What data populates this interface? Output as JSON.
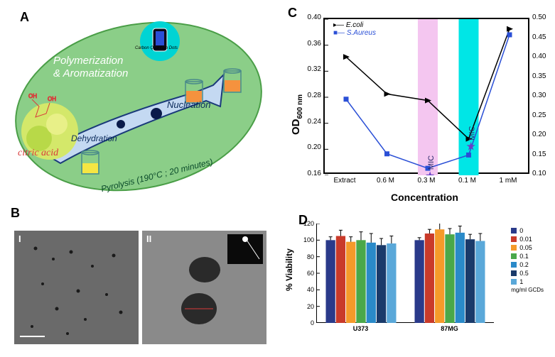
{
  "panel_labels": {
    "A": "A",
    "B": "B",
    "C": "C",
    "D": "D"
  },
  "panel_a": {
    "ellipse_fill": "#8bce88",
    "ellipse_stroke": "#4a9e47",
    "text_polymerization": "Polymerization",
    "text_aromatization": "& Aromatization",
    "text_nucleation": "Nucleation",
    "text_dehydration": "Dehydration",
    "text_pyrolysis": "Pyrolysis (190°C ; 20 minutes)",
    "text_citric": "citric acid",
    "text_cqd": "Carbon Quantum Dots",
    "arrow_fill": "#c4d9f2",
    "arrow_stroke": "#1a3a7a",
    "cqd_color": "#00d4d4",
    "dot_color": "#0a1a4a",
    "beaker_liquid1": "#f5e642",
    "beaker_liquid2": "#f5923e",
    "citric_color": "#d93b3b"
  },
  "panel_b": {
    "label_i": "I",
    "label_ii": "II",
    "bg_i": "#6a6a6a",
    "bg_ii": "#828282",
    "particle_color": "#2a2a2a",
    "inset_bg": "#0a0a0a"
  },
  "panel_c": {
    "type": "line",
    "x_categories": [
      "Extract",
      "0.6 M",
      "0.3 M",
      "0.1 M",
      "1 mM"
    ],
    "series": [
      {
        "name": "E.coli",
        "color": "#000000",
        "marker": "triangle-right",
        "y_values": [
          0.342,
          0.285,
          0.275,
          0.216,
          0.385
        ],
        "mic_index": 3
      },
      {
        "name": "S.Aureus",
        "color": "#2a4fd6",
        "marker": "square",
        "y_right_values": [
          0.295,
          0.155,
          0.118,
          0.152,
          0.46
        ],
        "mic_index": 2
      }
    ],
    "ylabel": "OD",
    "ylabel_sub": "600 nm",
    "xlabel": "Concentration",
    "ylim_left": [
      0.16,
      0.4
    ],
    "ytick_left": [
      0.16,
      0.2,
      0.24,
      0.28,
      0.32,
      0.36,
      0.4
    ],
    "ylim_right": [
      0.1,
      0.5
    ],
    "ytick_right": [
      0.1,
      0.15,
      0.2,
      0.25,
      0.3,
      0.35,
      0.4,
      0.45,
      0.5
    ],
    "mic_label": "MIC",
    "mic_star_color": "#6a3fc6",
    "highlight_bands": [
      {
        "x_index": 2,
        "color": "#f4c6f0"
      },
      {
        "x_index": 3,
        "color": "#00e6e6"
      }
    ],
    "legend_pos": "top-left",
    "font_size_axis": 10,
    "font_size_label": 14
  },
  "panel_d": {
    "type": "bar",
    "groups": [
      "U373",
      "87MG"
    ],
    "legend_title": "mg/ml GCDs",
    "categories": [
      "0",
      "0.01",
      "0.05",
      "0.1",
      "0.2",
      "0.5",
      "1"
    ],
    "colors": [
      "#2a3a8a",
      "#c93a2a",
      "#f59a2a",
      "#4aa84a",
      "#2a8ac9",
      "#1a3a6a",
      "#5aa8d9"
    ],
    "values": {
      "U373": [
        100,
        105,
        98,
        100,
        97,
        94,
        96
      ],
      "87MG": [
        100,
        108,
        113,
        107,
        109,
        101,
        99
      ]
    },
    "errors": {
      "U373": [
        4,
        7,
        6,
        10,
        11,
        8,
        9
      ],
      "87MG": [
        3,
        5,
        11,
        7,
        8,
        6,
        9
      ]
    },
    "ylabel": "% Viability",
    "ylim": [
      0,
      120
    ],
    "ytick_step": 20,
    "yticks": [
      0,
      20,
      40,
      60,
      80,
      100,
      120
    ],
    "bar_width": 0.11,
    "background": "#ffffff",
    "font_size_axis": 9,
    "font_size_label": 12
  }
}
